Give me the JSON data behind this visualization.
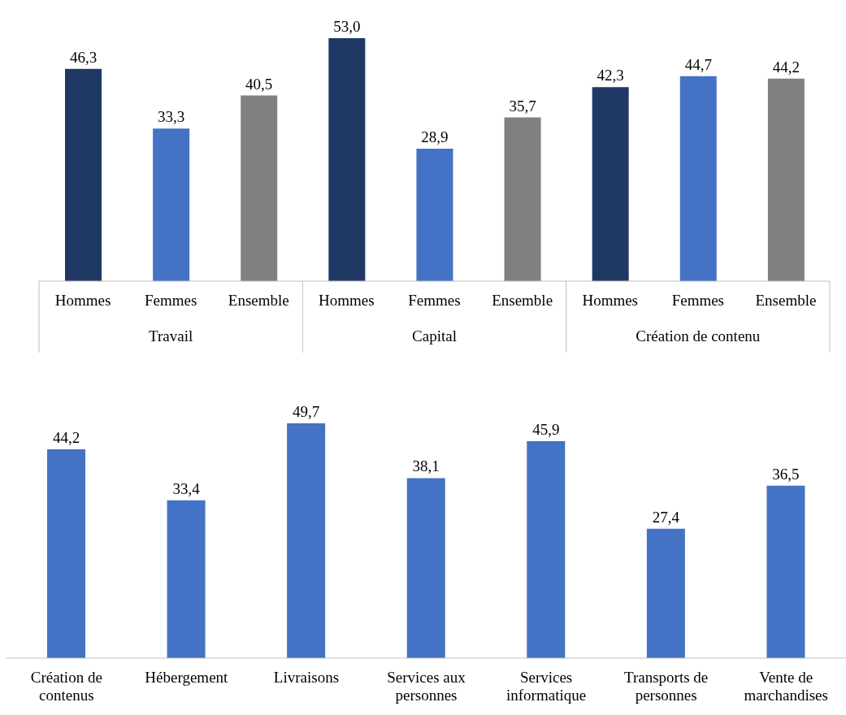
{
  "chart_data": [
    {
      "type": "bar",
      "categories": [
        "Hommes",
        "Femmes",
        "Ensemble",
        "Hommes",
        "Femmes",
        "Ensemble",
        "Hommes",
        "Femmes",
        "Ensemble"
      ],
      "values": [
        46.3,
        33.3,
        40.5,
        53.0,
        28.9,
        35.7,
        42.3,
        44.7,
        44.2
      ],
      "colors": [
        "#203864",
        "#4472c4",
        "#808080",
        "#203864",
        "#4472c4",
        "#808080",
        "#203864",
        "#4472c4",
        "#808080"
      ],
      "value_labels": [
        "46,3",
        "33,3",
        "40,5",
        "53,0",
        "28,9",
        "35,7",
        "42,3",
        "44,7",
        "44,2"
      ],
      "annotations": [
        "Travail",
        "Capital",
        "Création de contenu"
      ]
    },
    {
      "type": "bar",
      "categories": [
        "Création de contenus",
        "Hébergement",
        "Livraisons",
        "Services aux personnes",
        "Services informatique",
        "Transports de personnes",
        "Vente de marchandises"
      ],
      "values": [
        44.2,
        33.4,
        49.7,
        38.1,
        45.9,
        27.4,
        36.5
      ],
      "color": "#4472c4",
      "value_labels": [
        "44,2",
        "33,4",
        "49,7",
        "38,1",
        "45,9",
        "27,4",
        "36,5"
      ]
    }
  ]
}
